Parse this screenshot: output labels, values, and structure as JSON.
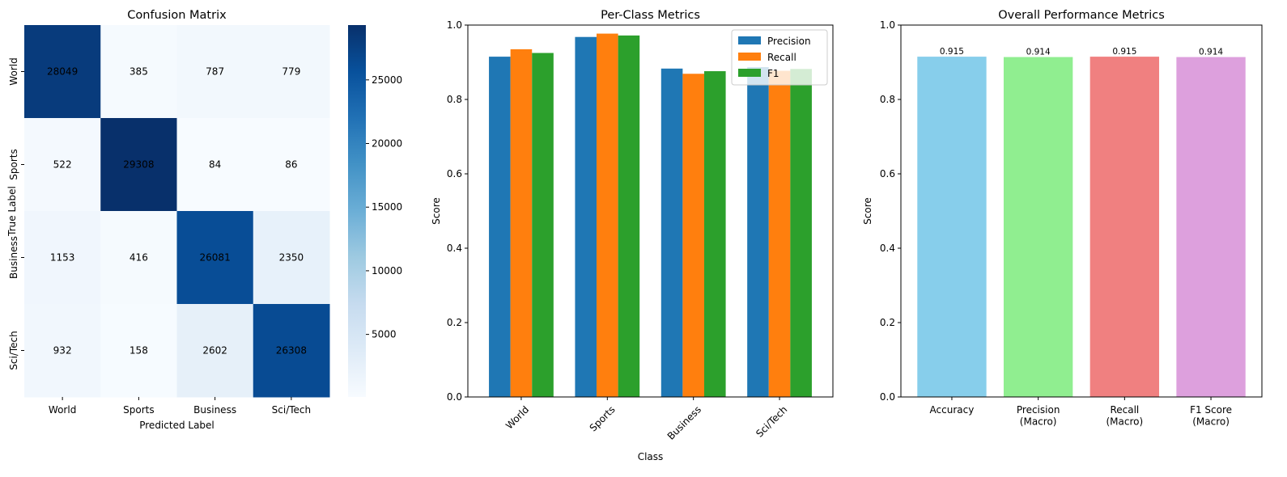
{
  "chart_data": [
    {
      "type": "heatmap",
      "title": "Confusion Matrix",
      "xlabel": "Predicted Label",
      "ylabel": "True Label",
      "x_categories": [
        "World",
        "Sports",
        "Business",
        "Sci/Tech"
      ],
      "y_categories": [
        "World",
        "Sports",
        "Business",
        "Sci/Tech"
      ],
      "values": [
        [
          28049,
          385,
          787,
          779
        ],
        [
          522,
          29308,
          84,
          86
        ],
        [
          1153,
          416,
          26081,
          2350
        ],
        [
          932,
          158,
          2602,
          26308
        ]
      ],
      "colormap": "Blues",
      "colorbar_range": [
        84,
        29308
      ],
      "colorbar_ticks": [
        5000,
        10000,
        15000,
        20000,
        25000
      ]
    },
    {
      "type": "bar",
      "title": "Per-Class Metrics",
      "xlabel": "Class",
      "ylabel": "Score",
      "categories": [
        "World",
        "Sports",
        "Business",
        "Sci/Tech"
      ],
      "series": [
        {
          "name": "Precision",
          "color": "#1f77b4",
          "values": [
            0.915,
            0.968,
            0.883,
            0.887
          ]
        },
        {
          "name": "Recall",
          "color": "#ff7f0e",
          "values": [
            0.935,
            0.977,
            0.869,
            0.877
          ]
        },
        {
          "name": "F1",
          "color": "#2ca02c",
          "values": [
            0.925,
            0.972,
            0.876,
            0.882
          ]
        }
      ],
      "ylim": [
        0,
        1.0
      ],
      "yticks": [
        "0.0",
        "0.2",
        "0.4",
        "0.6",
        "0.8",
        "1.0"
      ],
      "legend": "top-right",
      "xtick_rotation": 45
    },
    {
      "type": "bar",
      "title": "Overall Performance Metrics",
      "ylabel": "Score",
      "categories": [
        "Accuracy",
        "Precision\n(Macro)",
        "Recall\n(Macro)",
        "F1 Score\n(Macro)"
      ],
      "values": [
        0.915,
        0.914,
        0.915,
        0.914
      ],
      "data_labels": [
        "0.915",
        "0.914",
        "0.915",
        "0.914"
      ],
      "colors": [
        "#87ceeb",
        "#90ee90",
        "#f08080",
        "#dda0dd"
      ],
      "ylim": [
        0,
        1.0
      ],
      "yticks": [
        "0.0",
        "0.2",
        "0.4",
        "0.6",
        "0.8",
        "1.0"
      ]
    }
  ]
}
